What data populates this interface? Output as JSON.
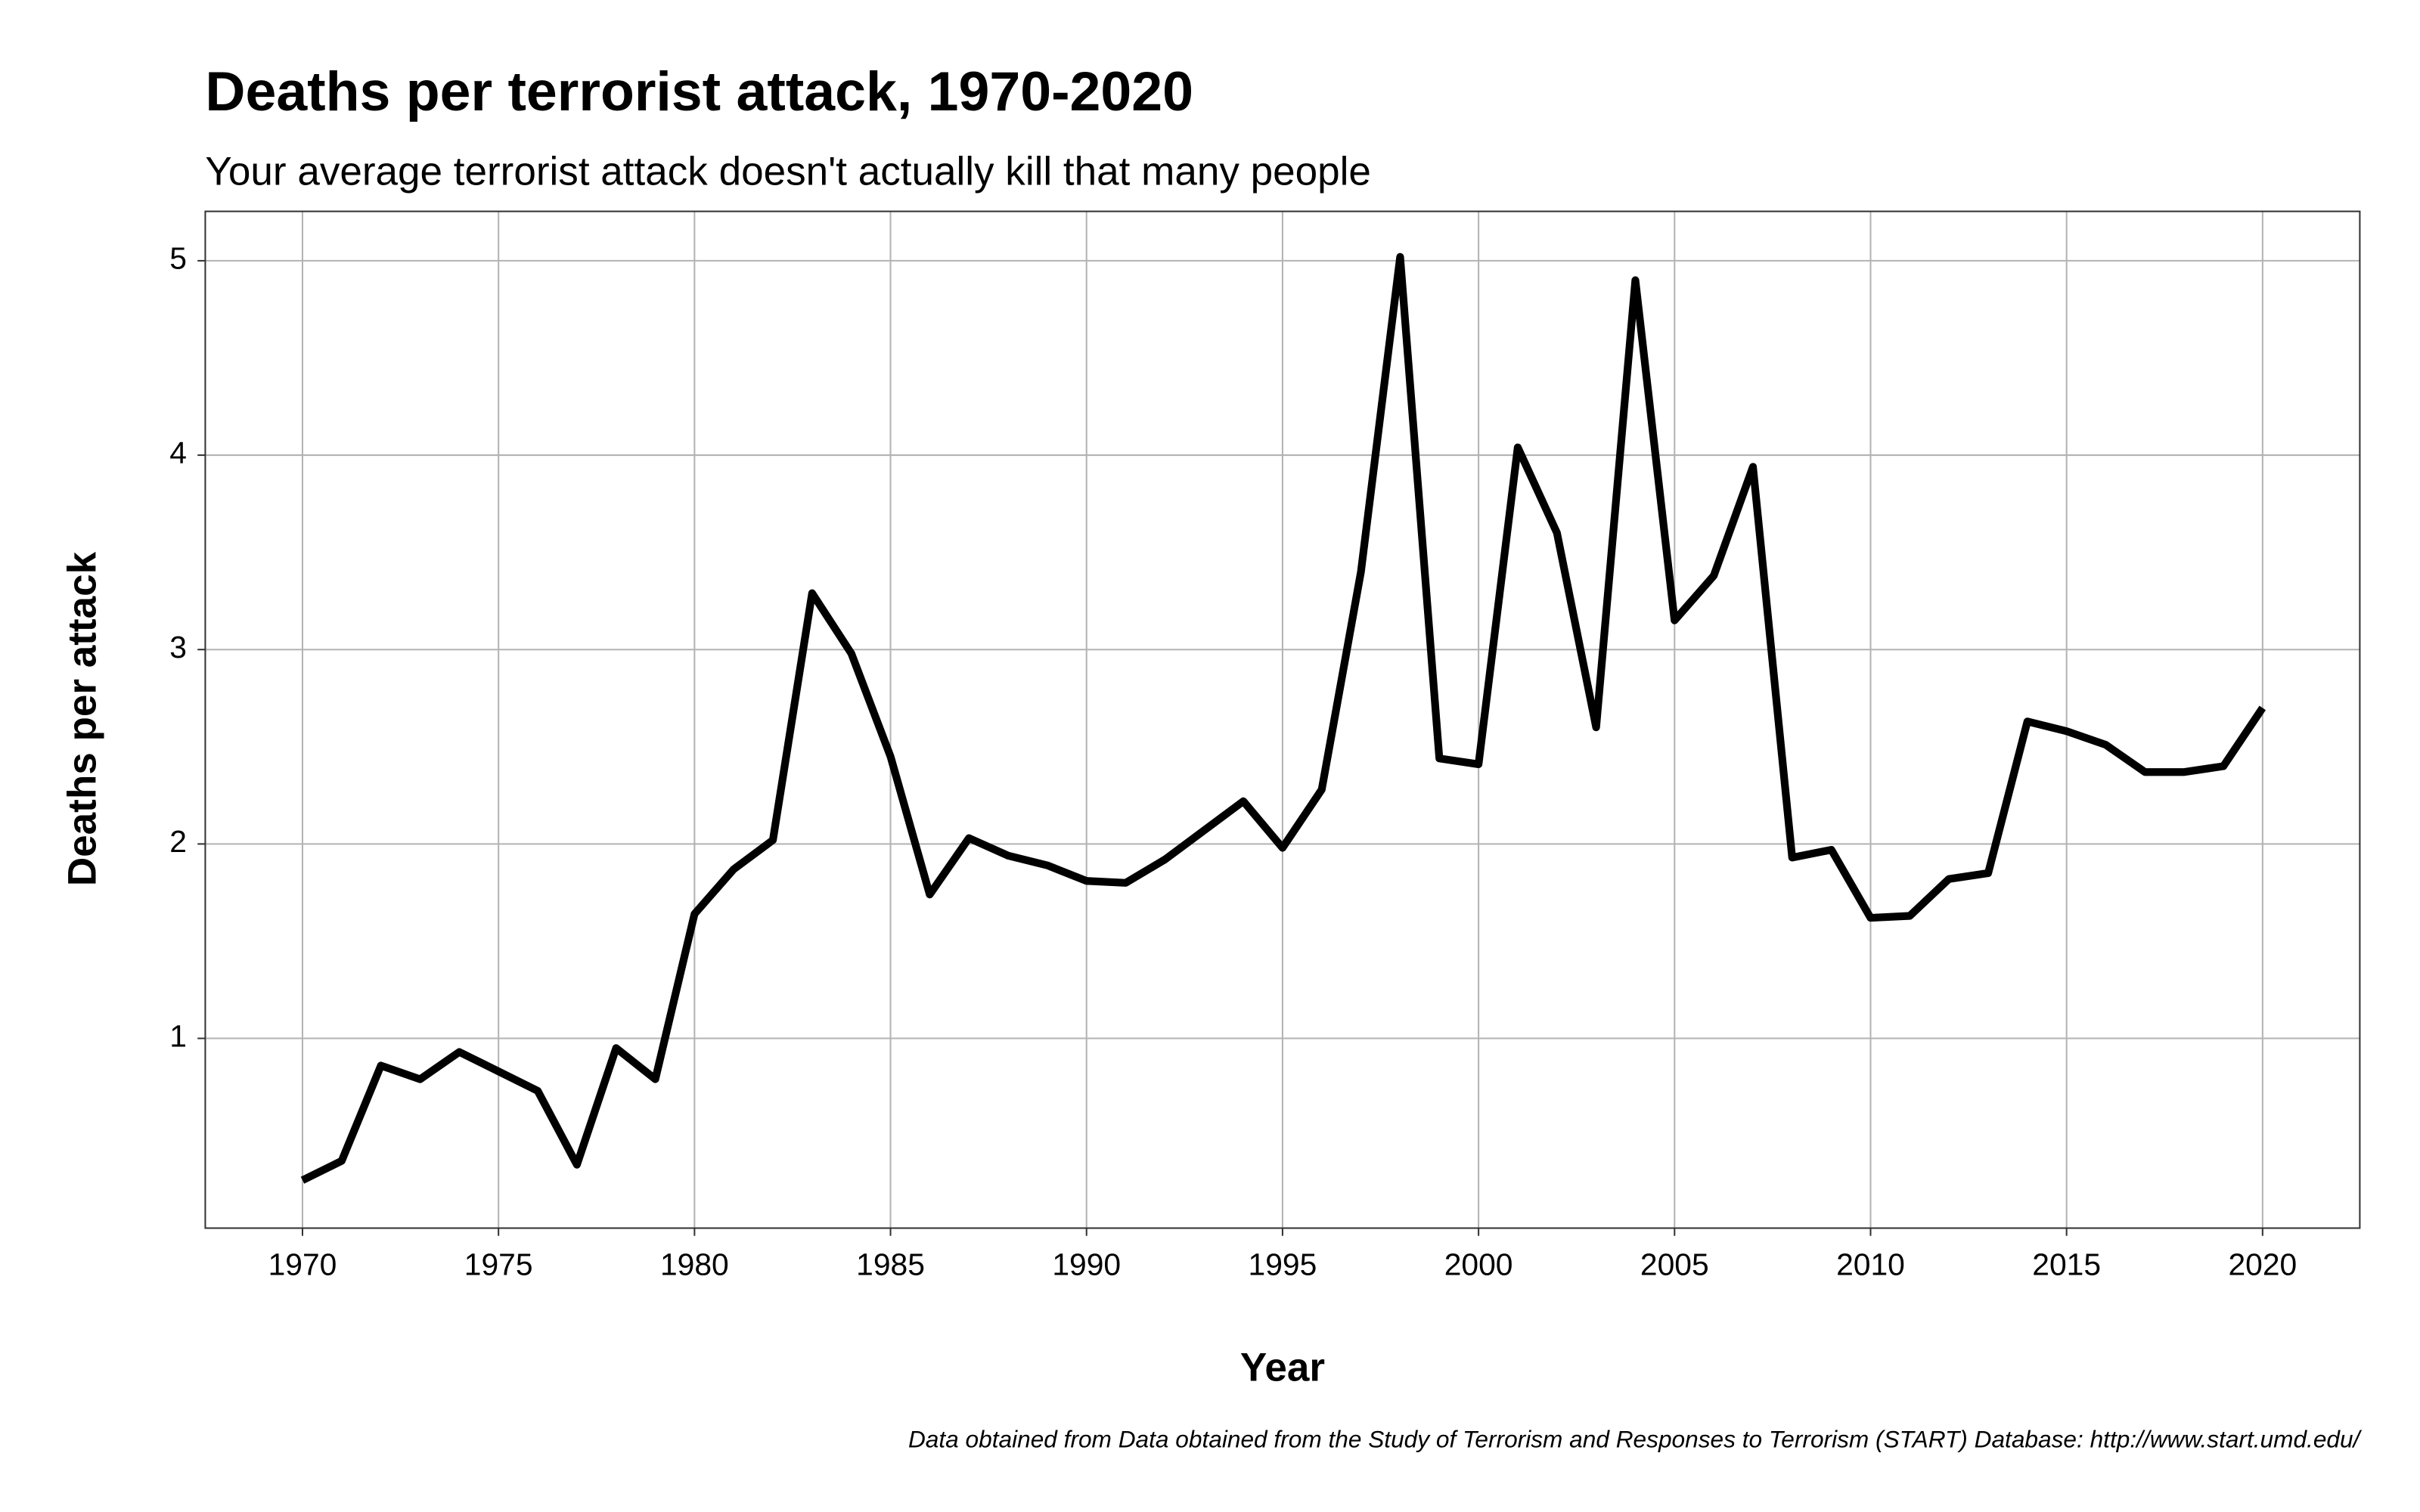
{
  "chart_data": {
    "type": "line",
    "title": "Deaths per terrorist attack, 1970-2020",
    "subtitle": "Your average terrorist attack doesn't actually kill that many people",
    "x_label": "Year",
    "y_label": "Deaths per attack",
    "caption": "Data obtained from Data obtained from the Study of Terrorism and Responses to Terrorism (START) Database: http://www.start.umd.edu/",
    "x": [
      1970,
      1971,
      1972,
      1973,
      1974,
      1975,
      1976,
      1977,
      1978,
      1979,
      1980,
      1981,
      1982,
      1983,
      1984,
      1985,
      1986,
      1987,
      1988,
      1989,
      1990,
      1991,
      1992,
      1993,
      1994,
      1995,
      1996,
      1997,
      1998,
      1999,
      2000,
      2001,
      2002,
      2003,
      2004,
      2005,
      2006,
      2007,
      2008,
      2009,
      2010,
      2011,
      2012,
      2013,
      2014,
      2015,
      2016,
      2017,
      2018,
      2019,
      2020
    ],
    "series": [
      {
        "name": "Deaths per attack",
        "color": "#000000",
        "values": [
          0.27,
          0.37,
          0.86,
          0.79,
          0.93,
          0.83,
          0.73,
          0.35,
          0.95,
          0.79,
          1.64,
          1.87,
          2.02,
          3.29,
          2.98,
          2.45,
          1.74,
          2.03,
          1.94,
          1.89,
          1.81,
          1.8,
          1.92,
          2.07,
          2.22,
          1.98,
          2.28,
          3.4,
          5.02,
          2.44,
          2.41,
          4.04,
          3.6,
          2.6,
          4.9,
          3.15,
          3.38,
          3.94,
          1.93,
          1.97,
          1.62,
          1.63,
          1.82,
          1.85,
          2.63,
          2.58,
          2.51,
          2.37,
          2.37,
          2.4,
          2.7
        ]
      }
    ],
    "xlim": [
      1967.52,
      2022.48
    ],
    "ylim": [
      0.024,
      5.254
    ],
    "xticks": [
      1970,
      1975,
      1980,
      1985,
      1990,
      1995,
      2000,
      2005,
      2010,
      2015,
      2020
    ],
    "yticks": [
      1,
      2,
      3,
      4,
      5
    ],
    "grid": true
  }
}
